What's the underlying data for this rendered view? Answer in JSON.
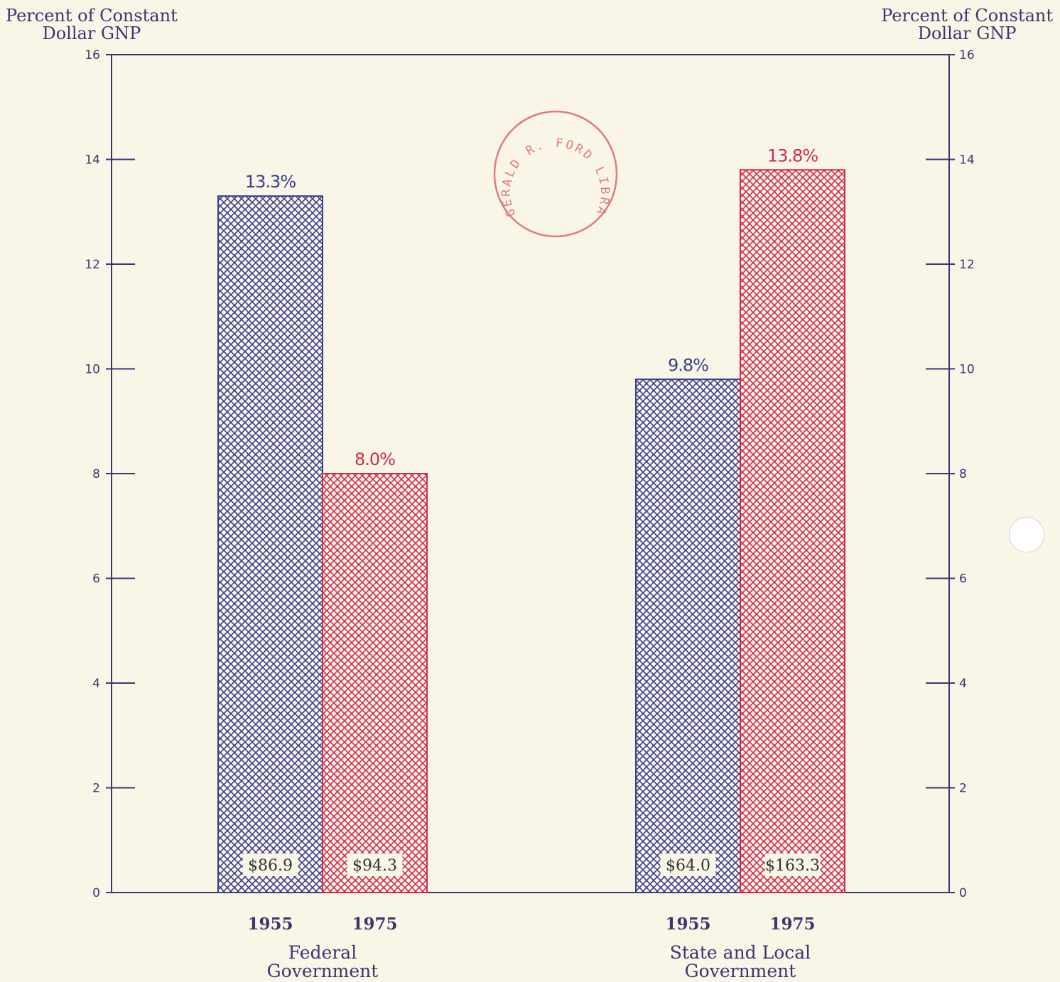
{
  "chart_data": {
    "type": "bar",
    "ylabel_left": "Percent of Constant\nDollar GNP",
    "ylabel_right": "Percent of Constant\nDollar GNP",
    "ylim": [
      0,
      16
    ],
    "yticks": [
      0,
      2,
      4,
      6,
      8,
      10,
      12,
      14,
      16
    ],
    "groups": [
      {
        "name": "Federal\nGovernment",
        "bars": [
          {
            "year": "1955",
            "value": 13.3,
            "label": "13.3%",
            "amount": "$86.9"
          },
          {
            "year": "1975",
            "value": 8.0,
            "label": "8.0%",
            "amount": "$94.3"
          }
        ]
      },
      {
        "name": "State and Local\nGovernment",
        "bars": [
          {
            "year": "1955",
            "value": 9.8,
            "label": "9.8%",
            "amount": "$64.0"
          },
          {
            "year": "1975",
            "value": 13.8,
            "label": "13.8%",
            "amount": "$163.3"
          }
        ]
      }
    ],
    "colors": {
      "1955": "#3b3d8f",
      "1975": "#d12a4e",
      "axis": "#3b3670"
    },
    "grid": false
  },
  "stamp_text": "GERALD R. FORD LIBRARY"
}
